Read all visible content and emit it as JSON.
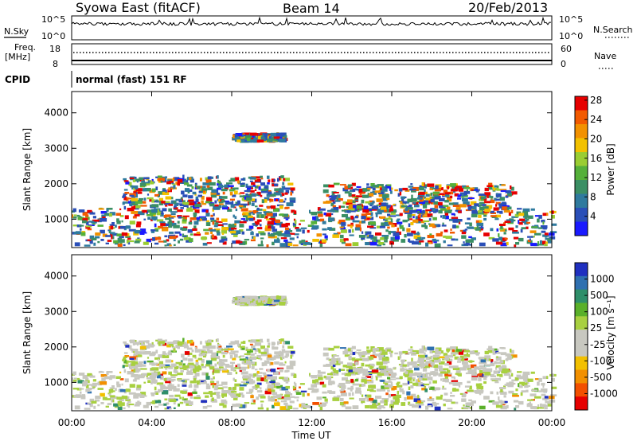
{
  "header": {
    "title": "Syowa East (fitACF)",
    "beam": "Beam 14",
    "date": "20/Feb/2013"
  },
  "panel_labels": {
    "nsky": "N.Sky",
    "nsky_top": "10^5",
    "nsky_bottom": "10^0",
    "nsearch": "N.Search",
    "nsearch_top": "10^5",
    "nsearch_bottom": "10^0",
    "freq": "Freq.",
    "freq_unit": "[MHz]",
    "freq_top": "18",
    "freq_bottom": "8",
    "nave": "Nave",
    "nave_top": "60",
    "nave_bottom": "0",
    "cpid": "CPID",
    "cpid_text": "normal (fast) 151 RF"
  },
  "chart_data": [
    {
      "type": "heatmap",
      "name": "power",
      "ylabel": "Slant Range [km]",
      "xlabel": "",
      "ylim": [
        200,
        4600
      ],
      "yticks": [
        "1000",
        "2000",
        "3000",
        "4000"
      ],
      "xlim": [
        0,
        24
      ],
      "colorbar_label": "Power [dB]",
      "colorbar_ticks": [
        "4",
        "8",
        "12",
        "16",
        "20",
        "24",
        "28"
      ],
      "colorbar_colors": [
        "#1a1aff",
        "#2a4fb8",
        "#2f7a9e",
        "#3b8f64",
        "#55b03a",
        "#9acd32",
        "#f2c100",
        "#f29100",
        "#f25a00",
        "#e60000"
      ],
      "echo_regions": [
        {
          "t0": 0.0,
          "t1": 24.0,
          "r0": 250,
          "r1": 1300
        },
        {
          "t0": 2.5,
          "t1": 11.0,
          "r0": 1300,
          "r1": 2200
        },
        {
          "t0": 8.0,
          "t1": 10.5,
          "r0": 3200,
          "r1": 3400
        },
        {
          "t0": 12.5,
          "t1": 22.0,
          "r0": 1200,
          "r1": 2000
        }
      ]
    },
    {
      "type": "heatmap",
      "name": "velocity",
      "ylabel": "Slant Range [km]",
      "xlabel": "Time UT",
      "ylim": [
        200,
        4600
      ],
      "yticks": [
        "1000",
        "2000",
        "3000",
        "4000"
      ],
      "xlim": [
        0,
        24
      ],
      "xticks": [
        "00:00",
        "04:00",
        "08:00",
        "12:00",
        "16:00",
        "20:00",
        "00:00"
      ],
      "colorbar_label": "Velocity [m s⁻¹]",
      "colorbar_ticks": [
        "1000",
        "500",
        "100",
        "25",
        "-25",
        "-100",
        "-500",
        "-1000"
      ],
      "colorbar_colors": [
        "#2030c0",
        "#2f70b0",
        "#2f8f6a",
        "#5ab02a",
        "#a8d040",
        "#c8c8c0",
        "#c8c8c0",
        "#f2c000",
        "#f29000",
        "#f25000",
        "#e60000"
      ]
    }
  ]
}
